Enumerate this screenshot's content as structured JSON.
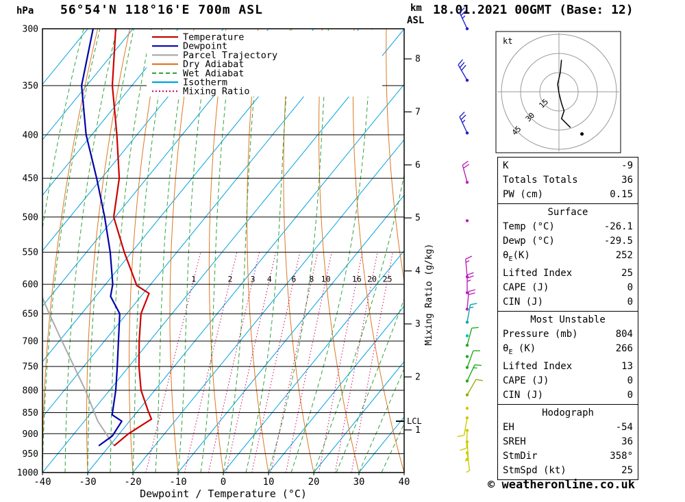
{
  "header": {
    "pressure_unit": "hPa",
    "station": "56°54'N 118°16'E 700m ASL",
    "datetime": "18.01.2021 00GMT (Base: 12)",
    "alt_unit_line1": "km",
    "alt_unit_line2": "ASL"
  },
  "axes": {
    "pressure_ticks": [
      300,
      350,
      400,
      450,
      500,
      550,
      600,
      650,
      700,
      750,
      800,
      850,
      900,
      950,
      1000
    ],
    "temp_ticks": [
      -40,
      -30,
      -20,
      -10,
      0,
      10,
      20,
      30,
      40
    ],
    "x_label": "Dewpoint / Temperature (°C)",
    "km_ticks": [
      8,
      7,
      6,
      5,
      4,
      3,
      2,
      1
    ],
    "mixing_axis_label": "Mixing Ratio (g/kg)",
    "lcl_label": "LCL"
  },
  "legend": [
    {
      "label": "Temperature",
      "color": "#cc0000",
      "style": "solid"
    },
    {
      "label": "Dewpoint",
      "color": "#0000aa",
      "style": "solid"
    },
    {
      "label": "Parcel Trajectory",
      "color": "#aaaaaa",
      "style": "solid"
    },
    {
      "label": "Dry Adiabat",
      "color": "#dd7722",
      "style": "solid"
    },
    {
      "label": "Wet Adiabat",
      "color": "#2ca33c",
      "style": "dashed"
    },
    {
      "label": "Isotherm",
      "color": "#00a2e0",
      "style": "solid"
    },
    {
      "label": "Mixing Ratio",
      "color": "#cc0066",
      "style": "dotted"
    }
  ],
  "colors": {
    "temperature": "#cc0000",
    "dewpoint": "#0000aa",
    "parcel": "#aaaaaa",
    "dry_adiabat": "#dd7722",
    "wet_adiabat": "#2ca33c",
    "isotherm": "#00a2e0",
    "mixing_ratio": "#cc0066",
    "mixing_label": "#ee00aa",
    "axis": "#000000"
  },
  "chart_data": {
    "type": "skewt",
    "title": "56°54'N 118°16'E 700m ASL",
    "pressure_axis": {
      "min": 300,
      "max": 1000,
      "scale": "log",
      "unit": "hPa"
    },
    "temp_axis": {
      "min": -40,
      "max": 40,
      "unit": "°C"
    },
    "isotherm_step": 10,
    "dry_adiabat_step": 10,
    "wet_adiabat_step": 5,
    "mixing_ratio_lines": [
      1,
      2,
      3,
      4,
      6,
      8,
      10,
      16,
      20,
      25
    ],
    "lcl_pressure": 870,
    "temperature_profile": [
      [
        930,
        -26.1
      ],
      [
        900,
        -23.8
      ],
      [
        865,
        -19.8
      ],
      [
        845,
        -21.2
      ],
      [
        800,
        -24.2
      ],
      [
        750,
        -26.4
      ],
      [
        700,
        -28.2
      ],
      [
        650,
        -29.8
      ],
      [
        615,
        -29.5
      ],
      [
        602,
        -32.8
      ],
      [
        550,
        -38.0
      ],
      [
        500,
        -42.9
      ],
      [
        450,
        -44.5
      ],
      [
        400,
        -48.2
      ],
      [
        350,
        -52.8
      ],
      [
        300,
        -56.2
      ]
    ],
    "dewpoint_profile": [
      [
        930,
        -29.5
      ],
      [
        905,
        -27.2
      ],
      [
        870,
        -26.2
      ],
      [
        855,
        -28.8
      ],
      [
        800,
        -29.8
      ],
      [
        750,
        -31.2
      ],
      [
        700,
        -32.8
      ],
      [
        650,
        -34.5
      ],
      [
        620,
        -37.8
      ],
      [
        600,
        -38.2
      ],
      [
        550,
        -41.1
      ],
      [
        500,
        -44.9
      ],
      [
        450,
        -49.5
      ],
      [
        400,
        -55.0
      ],
      [
        350,
        -59.6
      ],
      [
        300,
        -61.2
      ]
    ],
    "parcel_profile": [
      [
        930,
        -26.1
      ],
      [
        870,
        -31.5
      ],
      [
        800,
        -36.5
      ],
      [
        700,
        -45.3
      ],
      [
        650,
        -50.1
      ],
      [
        620,
        -53.0
      ]
    ],
    "wind_barbs": [
      {
        "p": 300,
        "dir": 335,
        "spd": 25,
        "color": "#2222cc"
      },
      {
        "p": 345,
        "dir": 330,
        "spd": 30,
        "color": "#2222cc"
      },
      {
        "p": 398,
        "dir": 335,
        "spd": 25,
        "color": "#2222cc"
      },
      {
        "p": 455,
        "dir": 345,
        "spd": 20,
        "color": "#bb22bb"
      },
      {
        "p": 505,
        "dir": 0,
        "spd": 0,
        "color": "#bb22bb"
      },
      {
        "p": 588,
        "dir": 355,
        "spd": 15,
        "color": "#bb22bb"
      },
      {
        "p": 614,
        "dir": 0,
        "spd": 25,
        "color": "#bb22bb"
      },
      {
        "p": 642,
        "dir": 5,
        "spd": 20,
        "color": "#bb22bb"
      },
      {
        "p": 665,
        "dir": 10,
        "spd": 15,
        "color": "#00a8a8"
      },
      {
        "p": 690,
        "dir": 0,
        "spd": 0,
        "color": "#00c0c0"
      },
      {
        "p": 708,
        "dir": 15,
        "spd": 10,
        "color": "#22aa22"
      },
      {
        "p": 730,
        "dir": 0,
        "spd": 0,
        "color": "#22aa22"
      },
      {
        "p": 752,
        "dir": 20,
        "spd": 10,
        "color": "#22aa22"
      },
      {
        "p": 780,
        "dir": 25,
        "spd": 15,
        "color": "#22aa22"
      },
      {
        "p": 810,
        "dir": 30,
        "spd": 10,
        "color": "#99aa00"
      },
      {
        "p": 840,
        "dir": 0,
        "spd": 0,
        "color": "#cccc00"
      },
      {
        "p": 862,
        "dir": 190,
        "spd": 10,
        "color": "#cccc00"
      },
      {
        "p": 892,
        "dir": 182,
        "spd": 10,
        "color": "#cccc00"
      },
      {
        "p": 920,
        "dir": 176,
        "spd": 5,
        "color": "#cccc00"
      },
      {
        "p": 948,
        "dir": 172,
        "spd": 5,
        "color": "#cccc00"
      },
      {
        "p": 965,
        "dir": 0,
        "spd": 0,
        "color": "#cccc00"
      }
    ],
    "hodograph": {
      "unit": "kt",
      "rings": [
        15,
        30,
        45
      ],
      "trace_kt": [
        [
          2,
          25
        ],
        [
          1,
          15
        ],
        [
          -1,
          6
        ],
        [
          0,
          -1
        ],
        [
          2,
          -9
        ],
        [
          4,
          -15
        ],
        [
          2,
          -21
        ],
        [
          9,
          -28
        ]
      ],
      "storm_dot_kt": [
        18,
        -33
      ]
    }
  },
  "table": {
    "sections": [
      {
        "header": null,
        "rows": [
          [
            "K",
            "-9"
          ],
          [
            "Totals Totals",
            "36"
          ],
          [
            "PW (cm)",
            "0.15"
          ]
        ]
      },
      {
        "header": "Surface",
        "rows": [
          [
            "Temp (°C)",
            "-26.1"
          ],
          [
            "Dewp (°C)",
            "-29.5"
          ],
          [
            "θE(K)",
            "252"
          ],
          [
            "Lifted Index",
            "25"
          ],
          [
            "CAPE (J)",
            "0"
          ],
          [
            "CIN (J)",
            "0"
          ]
        ]
      },
      {
        "header": "Most Unstable",
        "rows": [
          [
            "Pressure (mb)",
            "804"
          ],
          [
            "θE (K)",
            "266"
          ],
          [
            "Lifted Index",
            "13"
          ],
          [
            "CAPE (J)",
            "0"
          ],
          [
            "CIN (J)",
            "0"
          ]
        ]
      },
      {
        "header": "Hodograph",
        "rows": [
          [
            "EH",
            "-54"
          ],
          [
            "SREH",
            "36"
          ],
          [
            "StmDir",
            "358°"
          ],
          [
            "StmSpd (kt)",
            "25"
          ]
        ]
      }
    ]
  },
  "footer": {
    "credit": "© weatheronline.co.uk"
  }
}
